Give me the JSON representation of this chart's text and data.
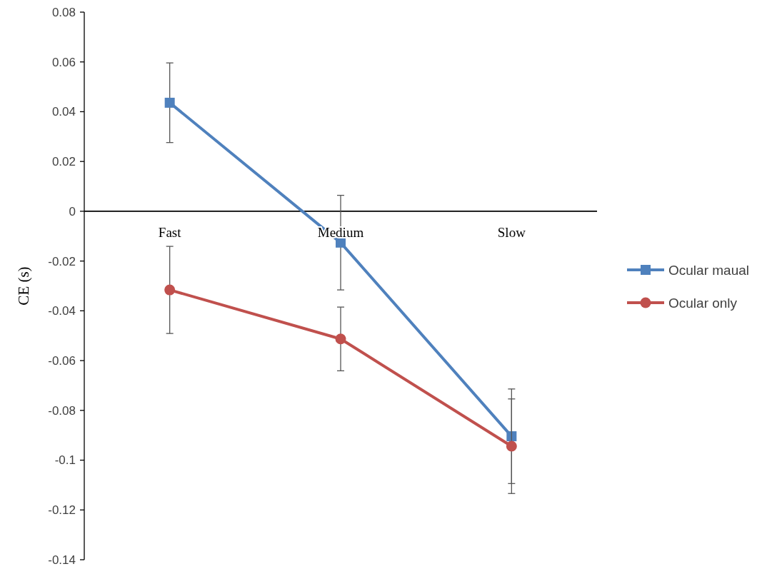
{
  "chart_data": {
    "type": "line",
    "ylabel": "CE (s)",
    "categories": [
      "Fast",
      "Medium",
      "Slow"
    ],
    "series": [
      {
        "name": "Ocular maual",
        "color": "#4f81bd",
        "marker": "square",
        "values": [
          0.0436,
          -0.0126,
          -0.0904
        ],
        "errors": [
          0.016,
          0.019,
          0.019
        ]
      },
      {
        "name": "Ocular only",
        "color": "#c0504d",
        "marker": "circle",
        "values": [
          -0.0316,
          -0.0513,
          -0.0944
        ],
        "errors": [
          0.0175,
          0.0128,
          0.019
        ]
      }
    ],
    "ylim": [
      -0.14,
      0.08
    ],
    "yticks": [
      0.08,
      0.06,
      0.04,
      0.02,
      0,
      -0.02,
      -0.04,
      -0.06,
      -0.08,
      -0.1,
      -0.12,
      -0.14
    ],
    "grid": false,
    "legend": "right",
    "line_style": "solid"
  }
}
